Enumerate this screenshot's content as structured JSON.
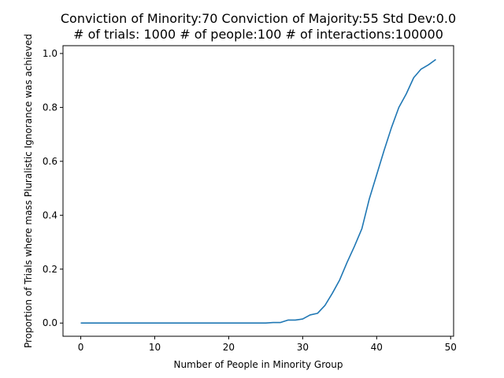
{
  "chart_data": {
    "type": "line",
    "title_line1": "Conviction of Minority:70 Conviction of Majority:55 Std Dev:0.0",
    "title_line2": "# of trials: 1000 # of people:100 # of interactions:100000",
    "xlabel": "Number of People in Minority Group",
    "ylabel": "Proportion of Trials where mass Pluralistic Ignorance was achieved",
    "xlim": [
      -2.4,
      50.4
    ],
    "ylim": [
      -0.049,
      1.029
    ],
    "xticks": [
      0,
      10,
      20,
      30,
      40,
      50
    ],
    "yticks": [
      0.0,
      0.2,
      0.4,
      0.6,
      0.8,
      1.0
    ],
    "xtick_labels": [
      "0",
      "10",
      "20",
      "30",
      "40",
      "50"
    ],
    "ytick_labels": [
      "0.0",
      "0.2",
      "0.4",
      "0.6",
      "0.8",
      "1.0"
    ],
    "line_color": "#1f77b4",
    "grid": false,
    "series": [
      {
        "x": [
          0,
          1,
          2,
          3,
          4,
          5,
          6,
          7,
          8,
          9,
          10,
          11,
          12,
          13,
          14,
          15,
          16,
          17,
          18,
          19,
          20,
          21,
          22,
          23,
          24,
          25,
          26,
          27,
          28,
          29,
          30,
          31,
          32,
          33,
          34,
          35,
          36,
          37,
          38,
          39,
          40,
          41,
          42,
          43,
          44,
          45,
          46,
          47,
          48
        ],
        "y": [
          0,
          0,
          0,
          0,
          0,
          0,
          0,
          0,
          0,
          0,
          0,
          0,
          0,
          0,
          0,
          0,
          0,
          0,
          0,
          0,
          0,
          0,
          0,
          0,
          0,
          0,
          0.002,
          0.002,
          0.011,
          0.011,
          0.015,
          0.03,
          0.036,
          0.065,
          0.11,
          0.16,
          0.225,
          0.285,
          0.35,
          0.46,
          0.55,
          0.64,
          0.725,
          0.8,
          0.85,
          0.91,
          0.942,
          0.958,
          0.978
        ]
      }
    ]
  }
}
